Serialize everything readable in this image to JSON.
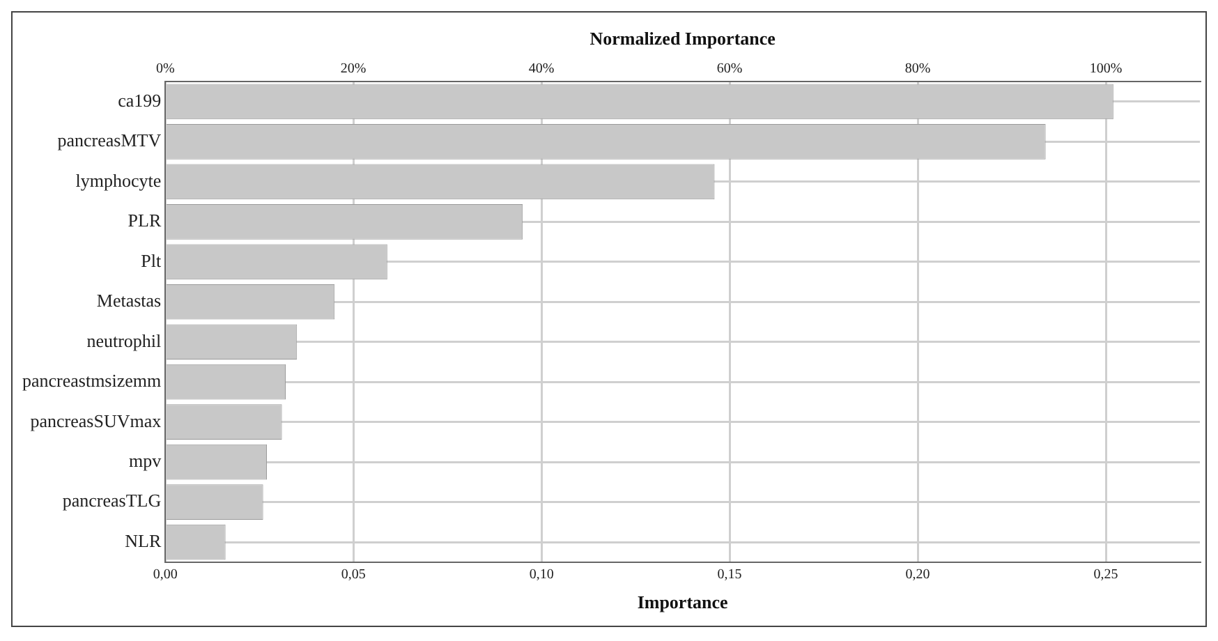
{
  "chart_data": {
    "type": "bar",
    "orientation": "horizontal",
    "categories": [
      "ca199",
      "pancreasMTV",
      "lymphocyte",
      "PLR",
      "Plt",
      "Metastas",
      "neutrophil",
      "pancreastmsizemm",
      "pancreasSUVmax",
      "mpv",
      "pancreasTLG",
      "NLR"
    ],
    "values": [
      0.252,
      0.234,
      0.146,
      0.095,
      0.059,
      0.045,
      0.035,
      0.032,
      0.031,
      0.027,
      0.026,
      0.016
    ],
    "color": "#c8c8c8",
    "xlabel": "Importance",
    "xlim": [
      0,
      0.275
    ],
    "xticks": [
      {
        "value": 0,
        "label": "0,00"
      },
      {
        "value": 0.05,
        "label": "0,05"
      },
      {
        "value": 0.1,
        "label": "0,10"
      },
      {
        "value": 0.15,
        "label": "0,15"
      },
      {
        "value": 0.2,
        "label": "0,20"
      },
      {
        "value": 0.25,
        "label": "0,25"
      }
    ],
    "x2label": "Normalized Importance",
    "x2lim": [
      0,
      110
    ],
    "x2ticks": [
      {
        "value": 0,
        "label": "0%"
      },
      {
        "value": 20,
        "label": "20%"
      },
      {
        "value": 40,
        "label": "40%"
      },
      {
        "value": 60,
        "label": "60%"
      },
      {
        "value": 80,
        "label": "80%"
      },
      {
        "value": 100,
        "label": "100%"
      }
    ],
    "grid": true
  }
}
